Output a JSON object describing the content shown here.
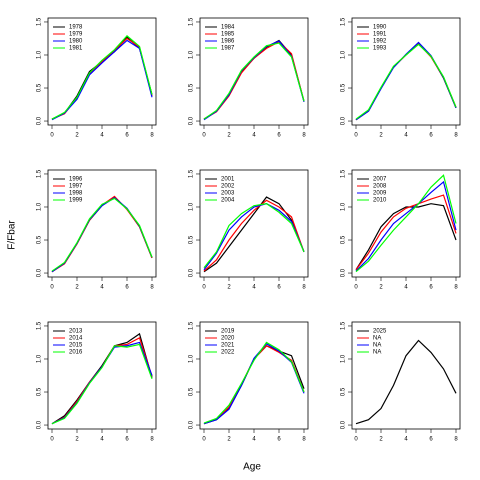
{
  "axis_labels": {
    "x": "Age",
    "y": "F/Fbar"
  },
  "chart_data": [
    {
      "type": "line",
      "x": [
        0,
        1,
        2,
        3,
        4,
        5,
        6,
        7,
        8
      ],
      "xlim": [
        -0.32,
        8.32
      ],
      "xticks": [
        0,
        2,
        4,
        6,
        8
      ],
      "ylim": [
        -0.06,
        1.56
      ],
      "yticks": [
        {
          "value": 0,
          "label": "0.0"
        },
        0.5,
        {
          "value": 1,
          "label": "1.0"
        },
        1.5
      ],
      "legend": "top-left",
      "series": [
        {
          "name": "1978",
          "color": "#000000",
          "values": [
            0.03,
            0.12,
            0.38,
            0.75,
            0.9,
            1.05,
            1.27,
            1.1,
            0.4
          ]
        },
        {
          "name": "1979",
          "color": "#ff0000",
          "values": [
            0.03,
            0.11,
            0.35,
            0.72,
            0.9,
            1.07,
            1.25,
            1.12,
            0.38
          ]
        },
        {
          "name": "1980",
          "color": "#0000ff",
          "values": [
            0.02,
            0.12,
            0.33,
            0.7,
            0.88,
            1.05,
            1.22,
            1.1,
            0.36
          ]
        },
        {
          "name": "1981",
          "color": "#00ff00",
          "values": [
            0.03,
            0.13,
            0.36,
            0.73,
            0.92,
            1.08,
            1.29,
            1.13,
            0.4
          ]
        }
      ]
    },
    {
      "type": "line",
      "x": [
        0,
        1,
        2,
        3,
        4,
        5,
        6,
        7,
        8
      ],
      "xlim": [
        -0.32,
        8.32
      ],
      "xticks": [
        0,
        2,
        4,
        6,
        8
      ],
      "ylim": [
        -0.06,
        1.56
      ],
      "yticks": [
        {
          "value": 0,
          "label": "0.0"
        },
        0.5,
        {
          "value": 1,
          "label": "1.0"
        },
        1.5
      ],
      "legend": "top-left",
      "series": [
        {
          "name": "1984",
          "color": "#000000",
          "values": [
            0.03,
            0.15,
            0.4,
            0.75,
            0.95,
            1.12,
            1.22,
            1.0,
            0.3
          ]
        },
        {
          "name": "1985",
          "color": "#ff0000",
          "values": [
            0.03,
            0.14,
            0.38,
            0.73,
            0.95,
            1.1,
            1.2,
            1.02,
            0.3
          ]
        },
        {
          "name": "1986",
          "color": "#0000ff",
          "values": [
            0.02,
            0.15,
            0.4,
            0.76,
            0.96,
            1.13,
            1.21,
            0.98,
            0.29
          ]
        },
        {
          "name": "1987",
          "color": "#00ff00",
          "values": [
            0.03,
            0.16,
            0.42,
            0.77,
            0.97,
            1.14,
            1.18,
            0.97,
            0.3
          ]
        }
      ]
    },
    {
      "type": "line",
      "x": [
        0,
        1,
        2,
        3,
        4,
        5,
        6,
        7,
        8
      ],
      "xlim": [
        -0.32,
        8.32
      ],
      "xticks": [
        0,
        2,
        4,
        6,
        8
      ],
      "ylim": [
        -0.06,
        1.56
      ],
      "yticks": [
        {
          "value": 0,
          "label": "0.0"
        },
        0.5,
        {
          "value": 1,
          "label": "1.0"
        },
        1.5
      ],
      "legend": "top-left",
      "series": [
        {
          "name": "1990",
          "color": "#000000",
          "values": [
            0.02,
            0.15,
            0.5,
            0.82,
            1.0,
            1.18,
            0.98,
            0.65,
            0.2
          ]
        },
        {
          "name": "1991",
          "color": "#ff0000",
          "values": [
            0.02,
            0.16,
            0.5,
            0.82,
            1.0,
            1.17,
            0.97,
            0.66,
            0.21
          ]
        },
        {
          "name": "1992",
          "color": "#0000ff",
          "values": [
            0.02,
            0.15,
            0.49,
            0.81,
            1.01,
            1.19,
            0.99,
            0.66,
            0.2
          ]
        },
        {
          "name": "1993",
          "color": "#00ff00",
          "values": [
            0.03,
            0.17,
            0.51,
            0.83,
            1.0,
            1.16,
            0.98,
            0.67,
            0.21
          ]
        }
      ]
    },
    {
      "type": "line",
      "x": [
        0,
        1,
        2,
        3,
        4,
        5,
        6,
        7,
        8
      ],
      "xlim": [
        -0.32,
        8.32
      ],
      "xticks": [
        0,
        2,
        4,
        6,
        8
      ],
      "ylim": [
        -0.06,
        1.56
      ],
      "yticks": [
        {
          "value": 0,
          "label": "0.0"
        },
        0.5,
        {
          "value": 1,
          "label": "1.0"
        },
        1.5
      ],
      "legend": "top-left",
      "series": [
        {
          "name": "1996",
          "color": "#000000",
          "values": [
            0.02,
            0.15,
            0.45,
            0.8,
            1.02,
            1.15,
            0.97,
            0.7,
            0.23
          ]
        },
        {
          "name": "1997",
          "color": "#ff0000",
          "values": [
            0.02,
            0.14,
            0.44,
            0.8,
            1.03,
            1.16,
            0.96,
            0.7,
            0.23
          ]
        },
        {
          "name": "1998",
          "color": "#0000ff",
          "values": [
            0.02,
            0.15,
            0.45,
            0.81,
            1.02,
            1.14,
            0.98,
            0.71,
            0.24
          ]
        },
        {
          "name": "1999",
          "color": "#00ff00",
          "values": [
            0.03,
            0.16,
            0.46,
            0.82,
            1.04,
            1.13,
            0.97,
            0.72,
            0.24
          ]
        }
      ]
    },
    {
      "type": "line",
      "x": [
        0,
        1,
        2,
        3,
        4,
        5,
        6,
        7,
        8
      ],
      "xlim": [
        -0.32,
        8.32
      ],
      "xticks": [
        0,
        2,
        4,
        6,
        8
      ],
      "ylim": [
        -0.06,
        1.56
      ],
      "yticks": [
        {
          "value": 0,
          "label": "0.0"
        },
        0.5,
        {
          "value": 1,
          "label": "1.0"
        },
        1.5
      ],
      "legend": "top-left",
      "series": [
        {
          "name": "2001",
          "color": "#000000",
          "values": [
            0.02,
            0.15,
            0.4,
            0.65,
            0.9,
            1.15,
            1.05,
            0.8,
            0.32
          ]
        },
        {
          "name": "2002",
          "color": "#ff0000",
          "values": [
            0.03,
            0.2,
            0.5,
            0.75,
            0.95,
            1.1,
            1.0,
            0.85,
            0.32
          ]
        },
        {
          "name": "2003",
          "color": "#0000ff",
          "values": [
            0.05,
            0.3,
            0.65,
            0.85,
            1.0,
            1.05,
            0.95,
            0.78,
            0.32
          ]
        },
        {
          "name": "2004",
          "color": "#00ff00",
          "values": [
            0.08,
            0.32,
            0.72,
            0.9,
            1.02,
            1.05,
            0.92,
            0.75,
            0.32
          ]
        }
      ]
    },
    {
      "type": "line",
      "x": [
        0,
        1,
        2,
        3,
        4,
        5,
        6,
        7,
        8
      ],
      "xlim": [
        -0.32,
        8.32
      ],
      "xticks": [
        0,
        2,
        4,
        6,
        8
      ],
      "ylim": [
        -0.06,
        1.56
      ],
      "yticks": [
        {
          "value": 0,
          "label": "0.0"
        },
        0.5,
        {
          "value": 1,
          "label": "1.0"
        },
        1.5
      ],
      "legend": "top-left",
      "series": [
        {
          "name": "2007",
          "color": "#000000",
          "values": [
            0.05,
            0.35,
            0.7,
            0.9,
            1.0,
            1.0,
            1.05,
            1.02,
            0.5
          ]
        },
        {
          "name": "2008",
          "color": "#ff0000",
          "values": [
            0.05,
            0.3,
            0.62,
            0.85,
            0.98,
            1.05,
            1.12,
            1.18,
            0.6
          ]
        },
        {
          "name": "2009",
          "color": "#0000ff",
          "values": [
            0.03,
            0.22,
            0.5,
            0.75,
            0.9,
            1.05,
            1.22,
            1.38,
            0.65
          ]
        },
        {
          "name": "2010",
          "color": "#00ff00",
          "values": [
            0.02,
            0.18,
            0.42,
            0.65,
            0.85,
            1.05,
            1.3,
            1.48,
            0.75
          ]
        }
      ]
    },
    {
      "type": "line",
      "x": [
        0,
        1,
        2,
        3,
        4,
        5,
        6,
        7,
        8
      ],
      "xlim": [
        -0.32,
        8.32
      ],
      "xticks": [
        0,
        2,
        4,
        6,
        8
      ],
      "ylim": [
        -0.06,
        1.56
      ],
      "yticks": [
        {
          "value": 0,
          "label": "0.0"
        },
        0.5,
        {
          "value": 1,
          "label": "1.0"
        },
        1.5
      ],
      "legend": "top-left",
      "series": [
        {
          "name": "2013",
          "color": "#000000",
          "values": [
            0.02,
            0.14,
            0.38,
            0.65,
            0.9,
            1.2,
            1.25,
            1.38,
            0.72
          ]
        },
        {
          "name": "2014",
          "color": "#ff0000",
          "values": [
            0.02,
            0.12,
            0.36,
            0.65,
            0.88,
            1.2,
            1.22,
            1.32,
            0.74
          ]
        },
        {
          "name": "2015",
          "color": "#0000ff",
          "values": [
            0.02,
            0.11,
            0.34,
            0.64,
            0.88,
            1.18,
            1.2,
            1.25,
            0.75
          ]
        },
        {
          "name": "2016",
          "color": "#00ff00",
          "values": [
            0.02,
            0.1,
            0.33,
            0.63,
            0.87,
            1.2,
            1.18,
            1.22,
            0.7
          ]
        }
      ]
    },
    {
      "type": "line",
      "x": [
        0,
        1,
        2,
        3,
        4,
        5,
        6,
        7,
        8
      ],
      "xlim": [
        -0.32,
        8.32
      ],
      "xticks": [
        0,
        2,
        4,
        6,
        8
      ],
      "ylim": [
        -0.06,
        1.56
      ],
      "yticks": [
        {
          "value": 0,
          "label": "0.0"
        },
        0.5,
        {
          "value": 1,
          "label": "1.0"
        },
        1.5
      ],
      "legend": "top-left",
      "series": [
        {
          "name": "2019",
          "color": "#000000",
          "values": [
            0.02,
            0.08,
            0.25,
            0.6,
            1.0,
            1.2,
            1.12,
            1.05,
            0.55
          ]
        },
        {
          "name": "2020",
          "color": "#ff0000",
          "values": [
            0.02,
            0.09,
            0.27,
            0.62,
            1.0,
            1.2,
            1.1,
            0.98,
            0.5
          ]
        },
        {
          "name": "2021",
          "color": "#0000ff",
          "values": [
            0.02,
            0.08,
            0.24,
            0.6,
            1.01,
            1.23,
            1.12,
            0.95,
            0.48
          ]
        },
        {
          "name": "2022",
          "color": "#00ff00",
          "values": [
            0.03,
            0.1,
            0.3,
            0.63,
            0.98,
            1.25,
            1.14,
            0.96,
            0.5
          ]
        }
      ]
    },
    {
      "type": "line",
      "x": [
        0,
        1,
        2,
        3,
        4,
        5,
        6,
        7,
        8
      ],
      "xlim": [
        -0.32,
        8.32
      ],
      "xticks": [
        0,
        2,
        4,
        6,
        8
      ],
      "ylim": [
        -0.06,
        1.56
      ],
      "yticks": [
        {
          "value": 0,
          "label": "0.0"
        },
        0.5,
        {
          "value": 1,
          "label": "1.0"
        },
        1.5
      ],
      "legend": "top-left",
      "series": [
        {
          "name": "2025",
          "color": "#000000",
          "values": [
            0.02,
            0.08,
            0.25,
            0.6,
            1.05,
            1.28,
            1.1,
            0.85,
            0.48
          ]
        },
        {
          "name": "NA",
          "color": "#ff0000",
          "values": [
            null,
            null,
            null,
            null,
            null,
            null,
            null,
            null,
            null
          ]
        },
        {
          "name": "NA",
          "color": "#0000ff",
          "values": [
            null,
            null,
            null,
            null,
            null,
            null,
            null,
            null,
            null
          ]
        },
        {
          "name": "NA",
          "color": "#00ff00",
          "values": [
            null,
            null,
            null,
            null,
            null,
            null,
            null,
            null,
            null
          ]
        }
      ]
    }
  ]
}
